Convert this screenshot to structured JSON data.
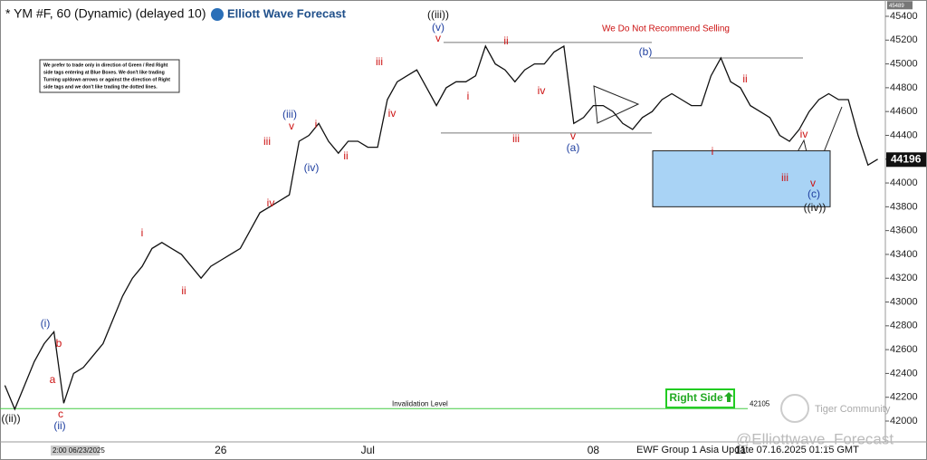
{
  "chart_data": {
    "type": "line",
    "title": "* YM #F, 60 (Dynamic) (delayed 10)",
    "brand": "Elliott Wave Forecast",
    "note": [
      "We prefer to trade only in direction of Green / Red Right",
      "side tags entering at Blue Boxes. We don't like trading",
      "Turning up/down arrows or against the direction of Right",
      "side tags and we don't like trading the dotted lines."
    ],
    "warning": "We Do Not Recommend Selling",
    "invalidation_label": "Invalidation Level",
    "invalidation": 42105,
    "right_side": "Right Side",
    "last_price": 44196,
    "top_price": 45489,
    "target_zone": [
      43800,
      44270
    ],
    "reference_lines": [
      45180,
      44420,
      45050
    ],
    "cursor_time": "2:00 06/23/2025",
    "footer": "EWF Group 1 Asia Update 07.16.2025 01:15 GMT",
    "watermark": "@Elliottwave_Forecast",
    "community": "Tiger Community",
    "categories": [
      null,
      null,
      null,
      null,
      null,
      null,
      null,
      null,
      null,
      null,
      null,
      null,
      null,
      null,
      null,
      null,
      null,
      null,
      null,
      null,
      null,
      null,
      "26",
      null,
      null,
      null,
      null,
      null,
      null,
      null,
      null,
      null,
      null,
      null,
      null,
      null,
      null,
      "Jul",
      null,
      null,
      null,
      null,
      null,
      null,
      null,
      null,
      null,
      null,
      null,
      null,
      null,
      null,
      null,
      null,
      null,
      null,
      null,
      null,
      null,
      null,
      "08",
      null,
      null,
      null,
      null,
      null,
      null,
      null,
      null,
      null,
      null,
      null,
      null,
      null,
      null,
      "11",
      null,
      null,
      null,
      null,
      null,
      null,
      null,
      null,
      null,
      null,
      null,
      null,
      null,
      null
    ],
    "series": [
      {
        "color": "#111111",
        "values": [
          42300,
          42100,
          42300,
          42500,
          42650,
          42750,
          42150,
          42400,
          42450,
          42550,
          42650,
          42850,
          43050,
          43200,
          43300,
          43450,
          43500,
          43450,
          43400,
          43300,
          43200,
          43300,
          43350,
          43400,
          43450,
          43600,
          43750,
          43800,
          43850,
          43900,
          44350,
          44400,
          44500,
          44350,
          44250,
          44350,
          44350,
          44300,
          44300,
          44700,
          44850,
          44900,
          44950,
          44800,
          44650,
          44800,
          44850,
          44850,
          44900,
          45150,
          45000,
          44950,
          44850,
          44950,
          45000,
          45000,
          45100,
          45150,
          44500,
          44550,
          44650,
          44650,
          44600,
          44500,
          44450,
          44550,
          44600,
          44700,
          44750,
          44700,
          44650,
          44650,
          44900,
          45050,
          44850,
          44800,
          44650,
          44600,
          44550,
          44400,
          44350,
          44450,
          44600,
          44700,
          44750,
          44700,
          44700,
          44400,
          44150,
          44200
        ]
      }
    ],
    "ylim": [
      42000,
      45400
    ],
    "yticks": [
      42000,
      42200,
      42400,
      42600,
      42800,
      43000,
      43200,
      43400,
      43600,
      43800,
      44000,
      44200,
      44400,
      44600,
      44800,
      45000,
      45200,
      45400
    ],
    "annotations": [
      {
        "text": "((ii))",
        "color": "#111111"
      },
      {
        "text": "(i)",
        "color": "#1f3fa0"
      },
      {
        "text": "b",
        "color": "#cc1111"
      },
      {
        "text": "a",
        "color": "#cc1111"
      },
      {
        "text": "c",
        "color": "#cc1111"
      },
      {
        "text": "(ii)",
        "color": "#1f3fa0"
      },
      {
        "text": "i",
        "color": "#cc1111"
      },
      {
        "text": "ii",
        "color": "#cc1111"
      },
      {
        "text": "iii",
        "color": "#cc1111"
      },
      {
        "text": "iv",
        "color": "#cc1111"
      },
      {
        "text": "(iii)",
        "color": "#1f3fa0"
      },
      {
        "text": "v",
        "color": "#cc1111"
      },
      {
        "text": "i",
        "color": "#cc1111"
      },
      {
        "text": "(iv)",
        "color": "#1f3fa0"
      },
      {
        "text": "ii",
        "color": "#cc1111"
      },
      {
        "text": "iii",
        "color": "#cc1111"
      },
      {
        "text": "iv",
        "color": "#cc1111"
      },
      {
        "text": "((iii))",
        "color": "#111111"
      },
      {
        "text": "(v)",
        "color": "#1f3fa0"
      },
      {
        "text": "v",
        "color": "#cc1111"
      },
      {
        "text": "ii",
        "color": "#cc1111"
      },
      {
        "text": "i",
        "color": "#cc1111"
      },
      {
        "text": "iii",
        "color": "#cc1111"
      },
      {
        "text": "iv",
        "color": "#cc1111"
      },
      {
        "text": "v",
        "color": "#cc1111"
      },
      {
        "text": "(a)",
        "color": "#1f3fa0"
      },
      {
        "text": "(b)",
        "color": "#1f3fa0"
      },
      {
        "text": "i",
        "color": "#cc1111"
      },
      {
        "text": "ii",
        "color": "#cc1111"
      },
      {
        "text": "iii",
        "color": "#cc1111"
      },
      {
        "text": "iv",
        "color": "#cc1111"
      },
      {
        "text": "v",
        "color": "#cc1111"
      },
      {
        "text": "(c)",
        "color": "#1f3fa0"
      },
      {
        "text": "((iv))",
        "color": "#111111"
      }
    ]
  }
}
